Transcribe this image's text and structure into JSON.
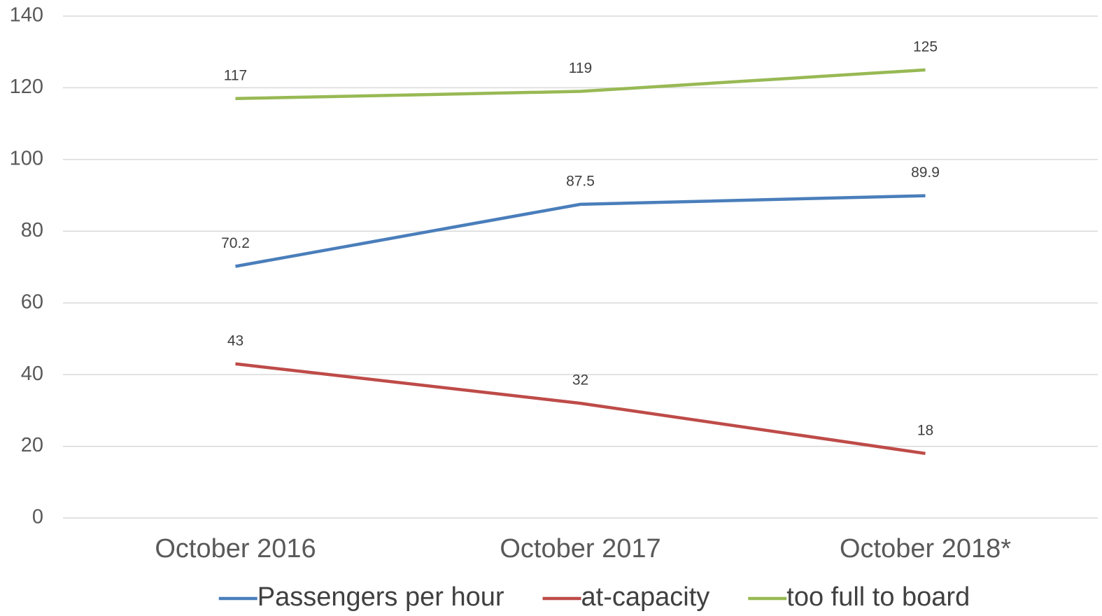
{
  "chart_data": {
    "type": "line",
    "categories": [
      "October 2016",
      "October 2017",
      "October 2018*"
    ],
    "series": [
      {
        "name": "Passengers per hour",
        "color": "#4a7ebb",
        "values": [
          70.2,
          87.5,
          89.9
        ]
      },
      {
        "name": "at-capacity",
        "color": "#be4b48",
        "values": [
          43,
          32,
          18
        ]
      },
      {
        "name": "too full to board",
        "color": "#98b954",
        "values": [
          117,
          119,
          125
        ]
      }
    ],
    "ylim": [
      0,
      140
    ],
    "yticks": [
      0,
      20,
      40,
      60,
      80,
      100,
      120,
      140
    ],
    "grid": true,
    "legend": "bottom"
  }
}
